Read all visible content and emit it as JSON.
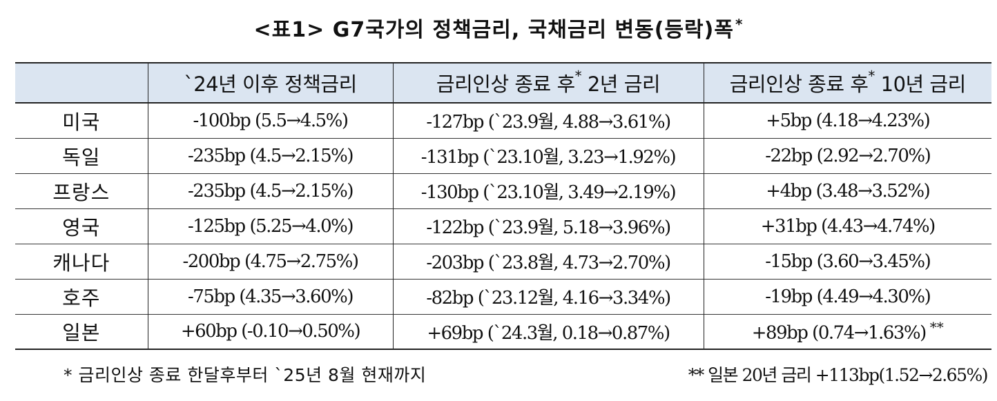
{
  "title": {
    "text": "<표1> G7국가의 정책금리, 국채금리 변동(등락)폭",
    "mark": "*"
  },
  "table": {
    "headers": [
      {
        "text": "",
        "mark": ""
      },
      {
        "text": "`24년 이후 정책금리",
        "mark": "",
        "after": ""
      },
      {
        "text": "금리인상 종료 후",
        "mark": "*",
        "after": " 2년 금리"
      },
      {
        "text": "금리인상 종료 후",
        "mark": "*",
        "after": " 10년 금리"
      }
    ],
    "rows": [
      {
        "country": "미국",
        "policy": "-100bp (5.5→4.5%)",
        "two_year": "-127bp (`23.9월, 4.88→3.61%)",
        "ten_year": "+5bp (4.18→4.23%)",
        "mark": ""
      },
      {
        "country": "독일",
        "policy": "-235bp (4.5→2.15%)",
        "two_year": "-131bp (`23.10월, 3.23→1.92%)",
        "ten_year": "-22bp (2.92→2.70%)",
        "mark": ""
      },
      {
        "country": "프랑스",
        "policy": "-235bp (4.5→2.15%)",
        "two_year": "-130bp (`23.10월, 3.49→2.19%)",
        "ten_year": "+4bp (3.48→3.52%)",
        "mark": ""
      },
      {
        "country": "영국",
        "policy": "-125bp (5.25→4.0%)",
        "two_year": "-122bp (`23.9월, 5.18→3.96%)",
        "ten_year": "+31bp (4.43→4.74%)",
        "mark": ""
      },
      {
        "country": "캐나다",
        "policy": "-200bp (4.75→2.75%)",
        "two_year": "-203bp (`23.8월, 4.73→2.70%)",
        "ten_year": "-15bp (3.60→3.45%)",
        "mark": ""
      },
      {
        "country": "호주",
        "policy": "-75bp (4.35→3.60%)",
        "two_year": "-82bp (`23.12월, 4.16→3.34%)",
        "ten_year": "-19bp (4.49→4.30%)",
        "mark": ""
      },
      {
        "country": "일본",
        "policy": "+60bp (-0.10→0.50%)",
        "two_year": "+69bp (`24.3월, 0.18→0.87%)",
        "ten_year": "+89bp (0.74→1.63%)",
        "mark": "**"
      }
    ]
  },
  "footnotes": {
    "left": "* 금리인상 종료 한달후부터 `25년 8월 현재까지",
    "right": "** 일본 20년 금리 +113bp(1.52→2.65%)"
  },
  "colors": {
    "header_background": "#dbe5f1",
    "border": "#222222",
    "text": "#111111"
  }
}
